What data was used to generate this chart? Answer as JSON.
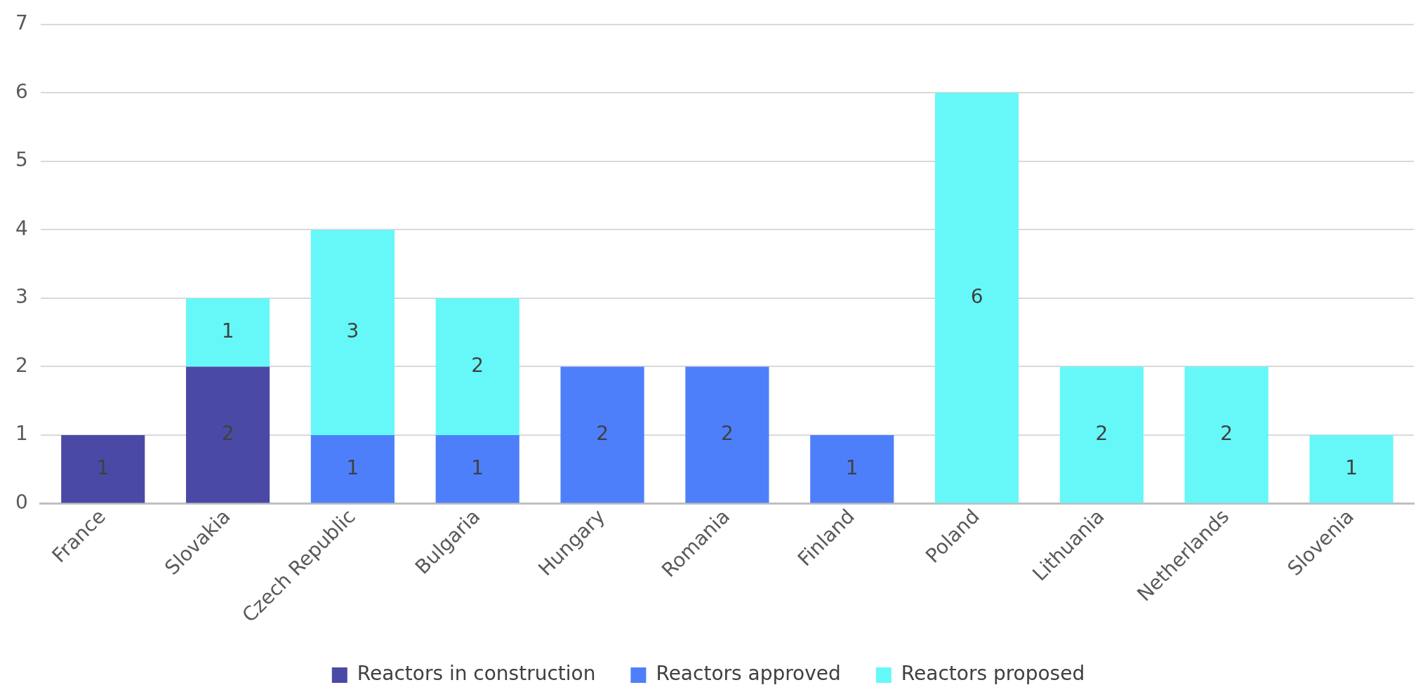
{
  "chart_data": {
    "type": "bar",
    "stacked": true,
    "categories": [
      "France",
      "Slovakia",
      "Czech Republic",
      "Bulgaria",
      "Hungary",
      "Romania",
      "Finland",
      "Poland",
      "Lithuania",
      "Netherlands",
      "Slovenia"
    ],
    "series": [
      {
        "name": "Reactors in construction",
        "color": "#4a4aa6",
        "values": [
          1,
          2,
          null,
          null,
          null,
          null,
          null,
          null,
          null,
          null,
          null
        ]
      },
      {
        "name": "Reactors approved",
        "color": "#4e7ffb",
        "values": [
          null,
          null,
          1,
          1,
          2,
          2,
          1,
          null,
          null,
          null,
          null
        ]
      },
      {
        "name": "Reactors proposed",
        "color": "#66f8f8",
        "values": [
          null,
          1,
          3,
          2,
          null,
          null,
          null,
          6,
          2,
          2,
          1
        ]
      }
    ],
    "ylim": [
      0,
      7
    ],
    "yticks": [
      0,
      1,
      2,
      3,
      4,
      5,
      6,
      7
    ],
    "grid": "y",
    "legend": "bottom",
    "data_labels": true
  }
}
